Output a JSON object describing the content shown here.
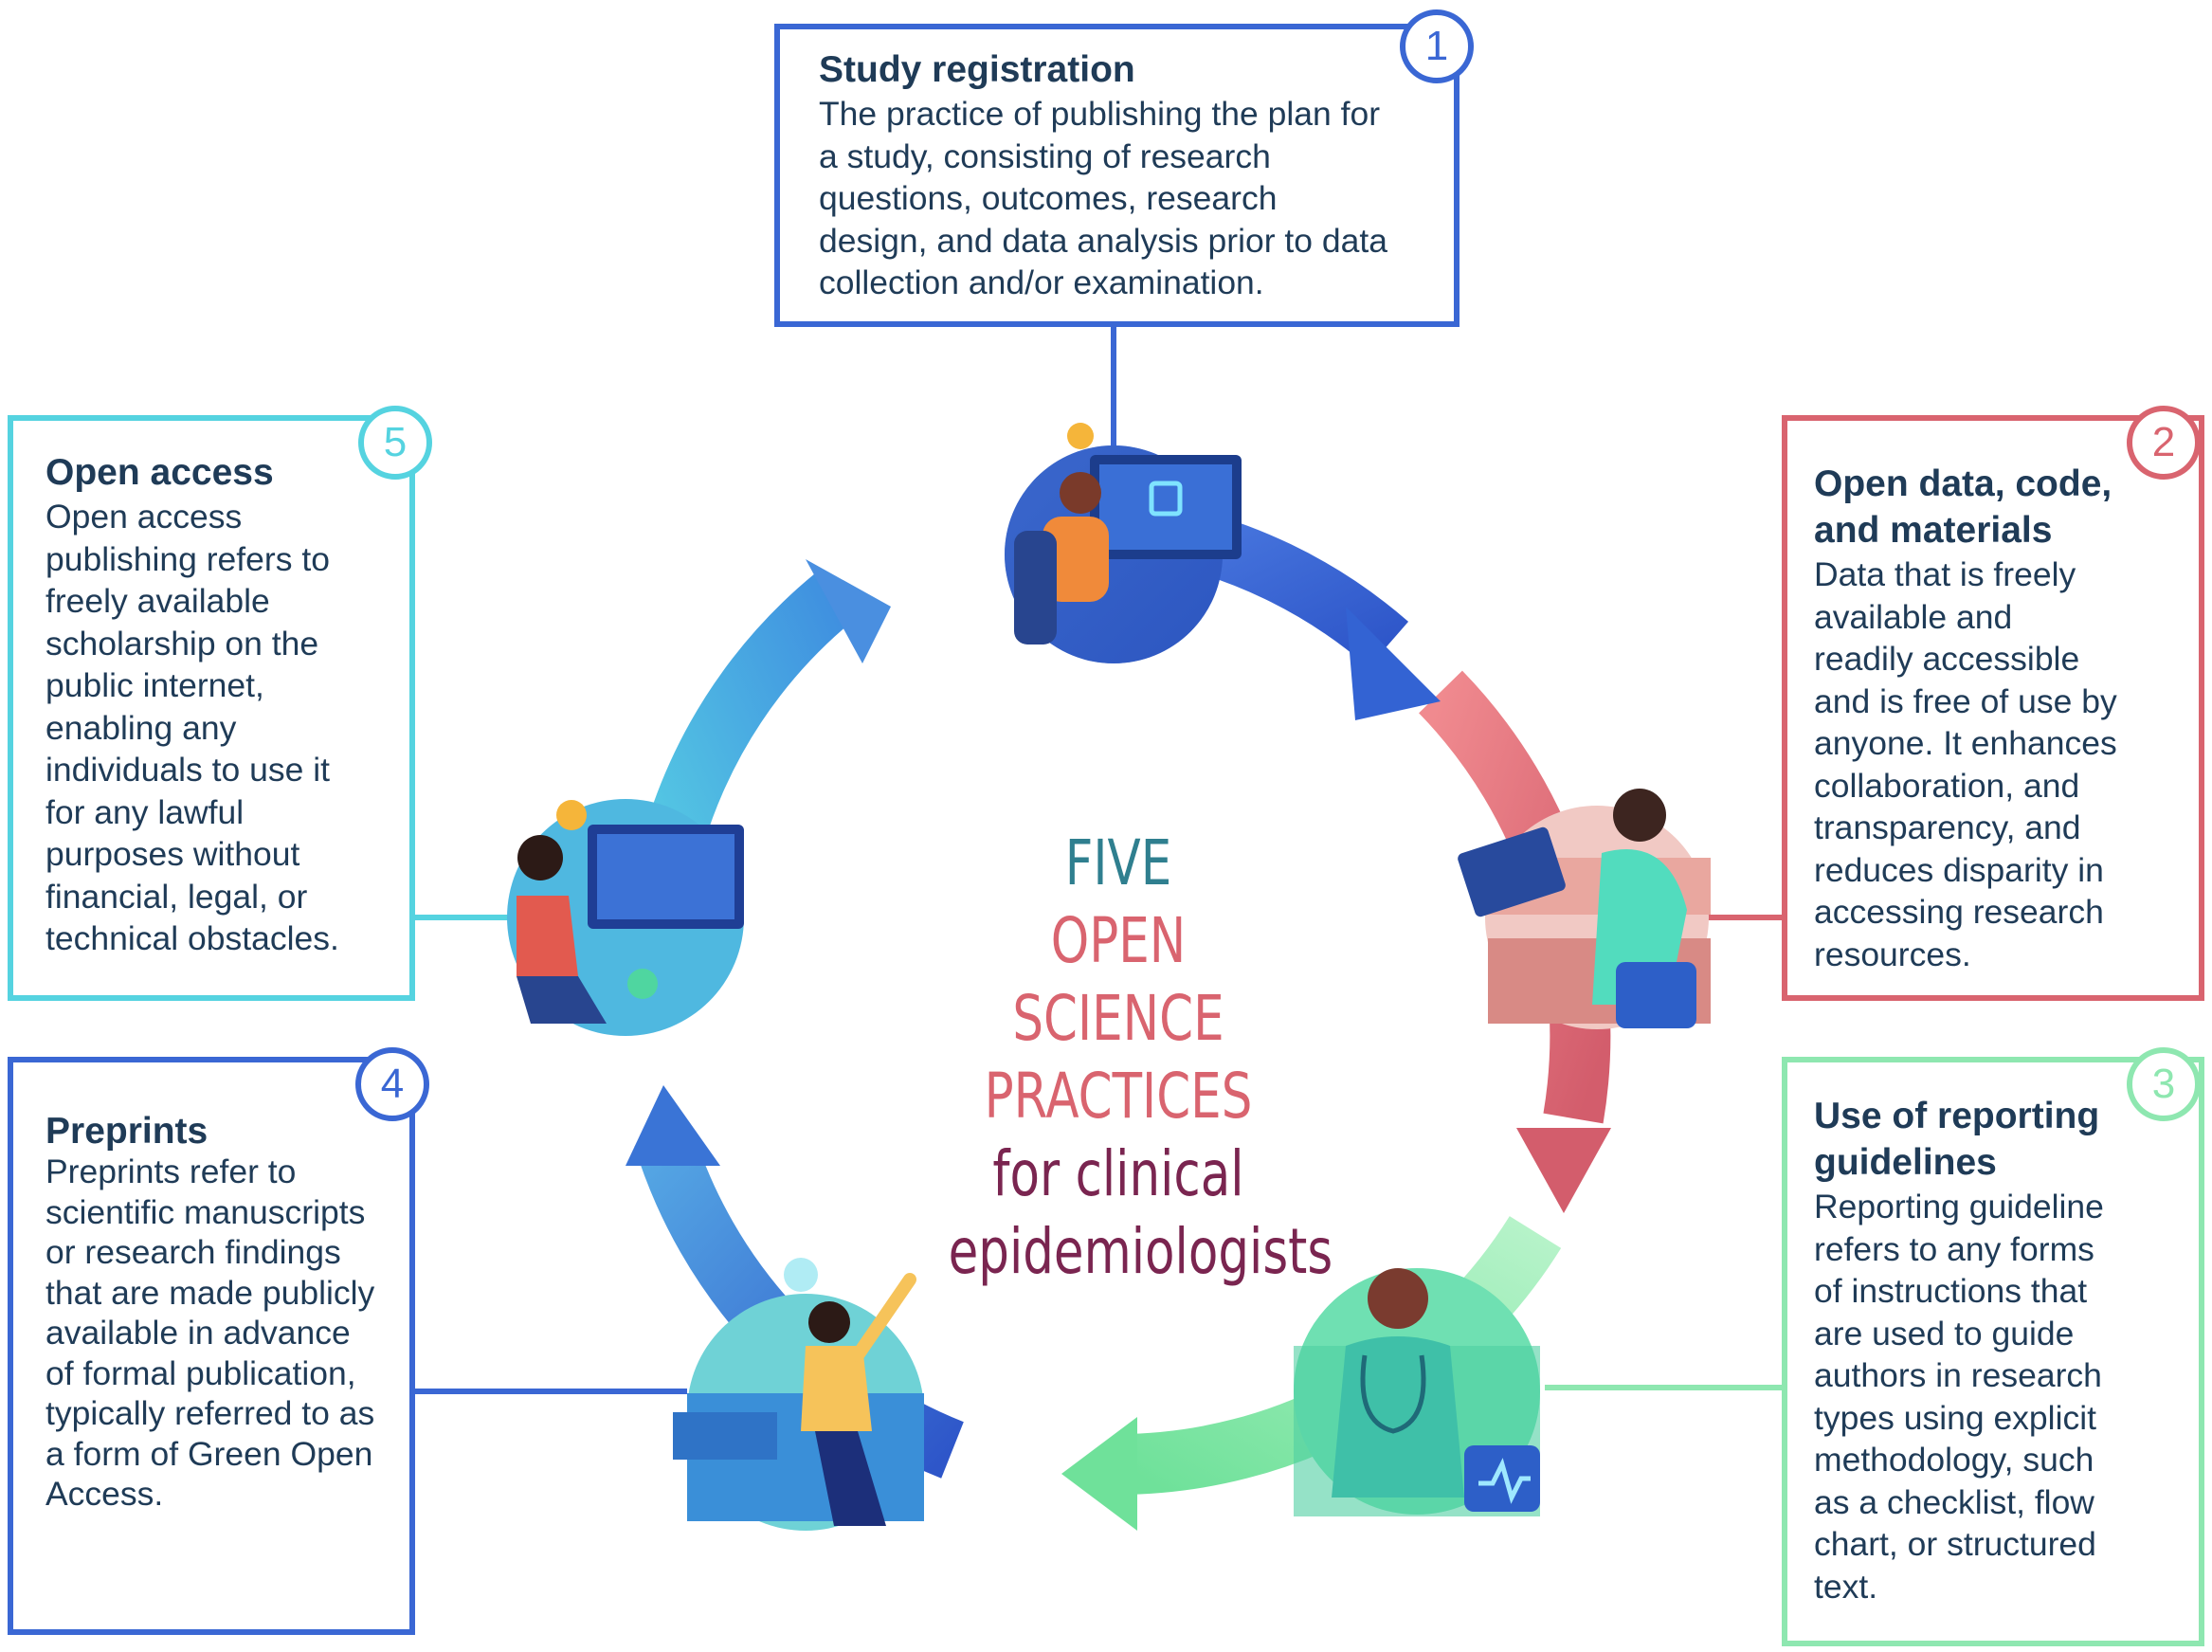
{
  "center": {
    "line1": "FIVE",
    "line2": "OPEN SCIENCE",
    "line3": "PRACTICES",
    "line4": "for clinical",
    "line5": "epidemiologists"
  },
  "practices": [
    {
      "number": "1",
      "title": "Study registration",
      "lines": [
        "The practice of publishing the plan for",
        "a study, consisting of research",
        "questions, outcomes, research",
        "design, and data analysis prior to data",
        "collection and/or examination."
      ],
      "color": "#3a67d4"
    },
    {
      "number": "2",
      "title_lines": [
        "Open data, code,",
        "and materials"
      ],
      "lines": [
        "Data that is freely",
        "available and",
        "readily accessible",
        "and is free of use by",
        "anyone. It enhances",
        "collaboration, and",
        "transparency, and",
        "reduces disparity in",
        "accessing research",
        "resources."
      ],
      "color": "#d9646f"
    },
    {
      "number": "3",
      "title_lines": [
        "Use of reporting",
        "guidelines"
      ],
      "lines": [
        "Reporting guideline",
        "refers to any forms",
        "of instructions that",
        "are used to guide",
        "authors in research",
        "types using explicit",
        "methodology, such",
        "as a checklist, flow",
        "chart, or structured",
        "text."
      ],
      "color": "#8ee7b0"
    },
    {
      "number": "4",
      "title": "Preprints",
      "lines": [
        "Preprints refer to",
        "scientific manuscripts",
        "or research findings",
        "that are made publicly",
        "available in advance",
        "of formal publication,",
        "typically referred to as",
        "a form of Green Open",
        "Access."
      ],
      "color": "#3a67d4"
    },
    {
      "number": "5",
      "title": "Open access",
      "lines": [
        "Open access",
        "publishing refers to",
        "freely available",
        "scholarship on the",
        "public internet,",
        "enabling any",
        "individuals to use it",
        "for any lawful",
        "purposes without",
        "financial, legal, or",
        "technical obstacles."
      ],
      "color": "#55d3e0"
    }
  ],
  "colors": {
    "text": "#1f3b57",
    "center_teal": "#2f7f8f",
    "center_pink": "#d9646f",
    "center_purple": "#7a2550"
  }
}
